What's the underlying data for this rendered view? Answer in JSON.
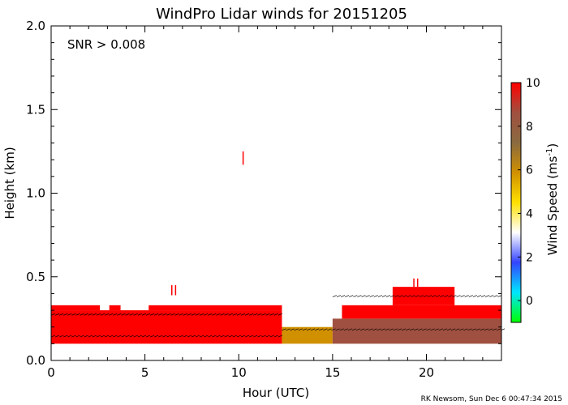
{
  "chart_data": {
    "type": "heatmap",
    "title": "WindPro Lidar winds for 20151205",
    "annotation": "SNR > 0.008",
    "xlabel": "Hour (UTC)",
    "ylabel": "Height (km)",
    "xlim": [
      0,
      24
    ],
    "ylim": [
      0,
      2.0
    ],
    "x_ticks": [
      0,
      5,
      10,
      15,
      20
    ],
    "x_tick_labels": [
      "0",
      "5",
      "10",
      "15",
      "20"
    ],
    "y_ticks": [
      0.0,
      0.5,
      1.0,
      1.5,
      2.0
    ],
    "y_tick_labels": [
      "0.0",
      "0.5",
      "1.0",
      "1.5",
      "2.0"
    ],
    "colorbar": {
      "label": "Wind Speed (ms",
      "label_superscript": "-1",
      "label_close": ")",
      "range": [
        -1,
        10
      ],
      "ticks": [
        0,
        2,
        4,
        6,
        8,
        10
      ],
      "tick_labels": [
        "0",
        "2",
        "4",
        "6",
        "8",
        "10"
      ],
      "colors": [
        "#00ff00",
        "#00e5ff",
        "#3344ff",
        "#ffffff",
        "#ffe000",
        "#d09000",
        "#8a6a40",
        "#a05040",
        "#ff0000"
      ]
    },
    "footer": "RK Newsom, Sun Dec  6 00:47:34 2015",
    "regions": [
      {
        "x0": 0.0,
        "x1": 12.3,
        "y0": 0.1,
        "y1": 0.3,
        "speed": 10
      },
      {
        "x0": 0.0,
        "x1": 2.6,
        "y0": 0.3,
        "y1": 0.33,
        "speed": 10
      },
      {
        "x0": 3.1,
        "x1": 3.7,
        "y0": 0.3,
        "y1": 0.33,
        "speed": 10
      },
      {
        "x0": 5.2,
        "x1": 12.3,
        "y0": 0.3,
        "y1": 0.33,
        "speed": 10
      },
      {
        "x0": 12.3,
        "x1": 15.0,
        "y0": 0.1,
        "y1": 0.2,
        "speed": 5.5
      },
      {
        "x0": 15.0,
        "x1": 24.0,
        "y0": 0.1,
        "y1": 0.25,
        "speed": 8.5
      },
      {
        "x0": 15.5,
        "x1": 24.0,
        "y0": 0.25,
        "y1": 0.33,
        "speed": 10
      },
      {
        "x0": 18.2,
        "x1": 21.5,
        "y0": 0.33,
        "y1": 0.44,
        "speed": 10
      },
      {
        "x0": 10.2,
        "x1": 10.25,
        "y0": 1.17,
        "y1": 1.25,
        "speed": 10
      },
      {
        "x0": 6.4,
        "x1": 6.45,
        "y0": 0.39,
        "y1": 0.45,
        "speed": 10
      },
      {
        "x0": 6.6,
        "x1": 6.65,
        "y0": 0.39,
        "y1": 0.45,
        "speed": 10
      },
      {
        "x0": 19.3,
        "x1": 19.35,
        "y0": 0.44,
        "y1": 0.49,
        "speed": 10
      },
      {
        "x0": 19.5,
        "x1": 19.55,
        "y0": 0.44,
        "y1": 0.49,
        "speed": 10
      }
    ],
    "vector_rows": [
      0.14,
      0.18,
      0.27,
      0.38
    ],
    "vector_x_ranges": [
      [
        0.0,
        12.3
      ],
      [
        12.3,
        24.0
      ],
      [
        0.0,
        12.3
      ],
      [
        15.0,
        24.0
      ]
    ]
  }
}
